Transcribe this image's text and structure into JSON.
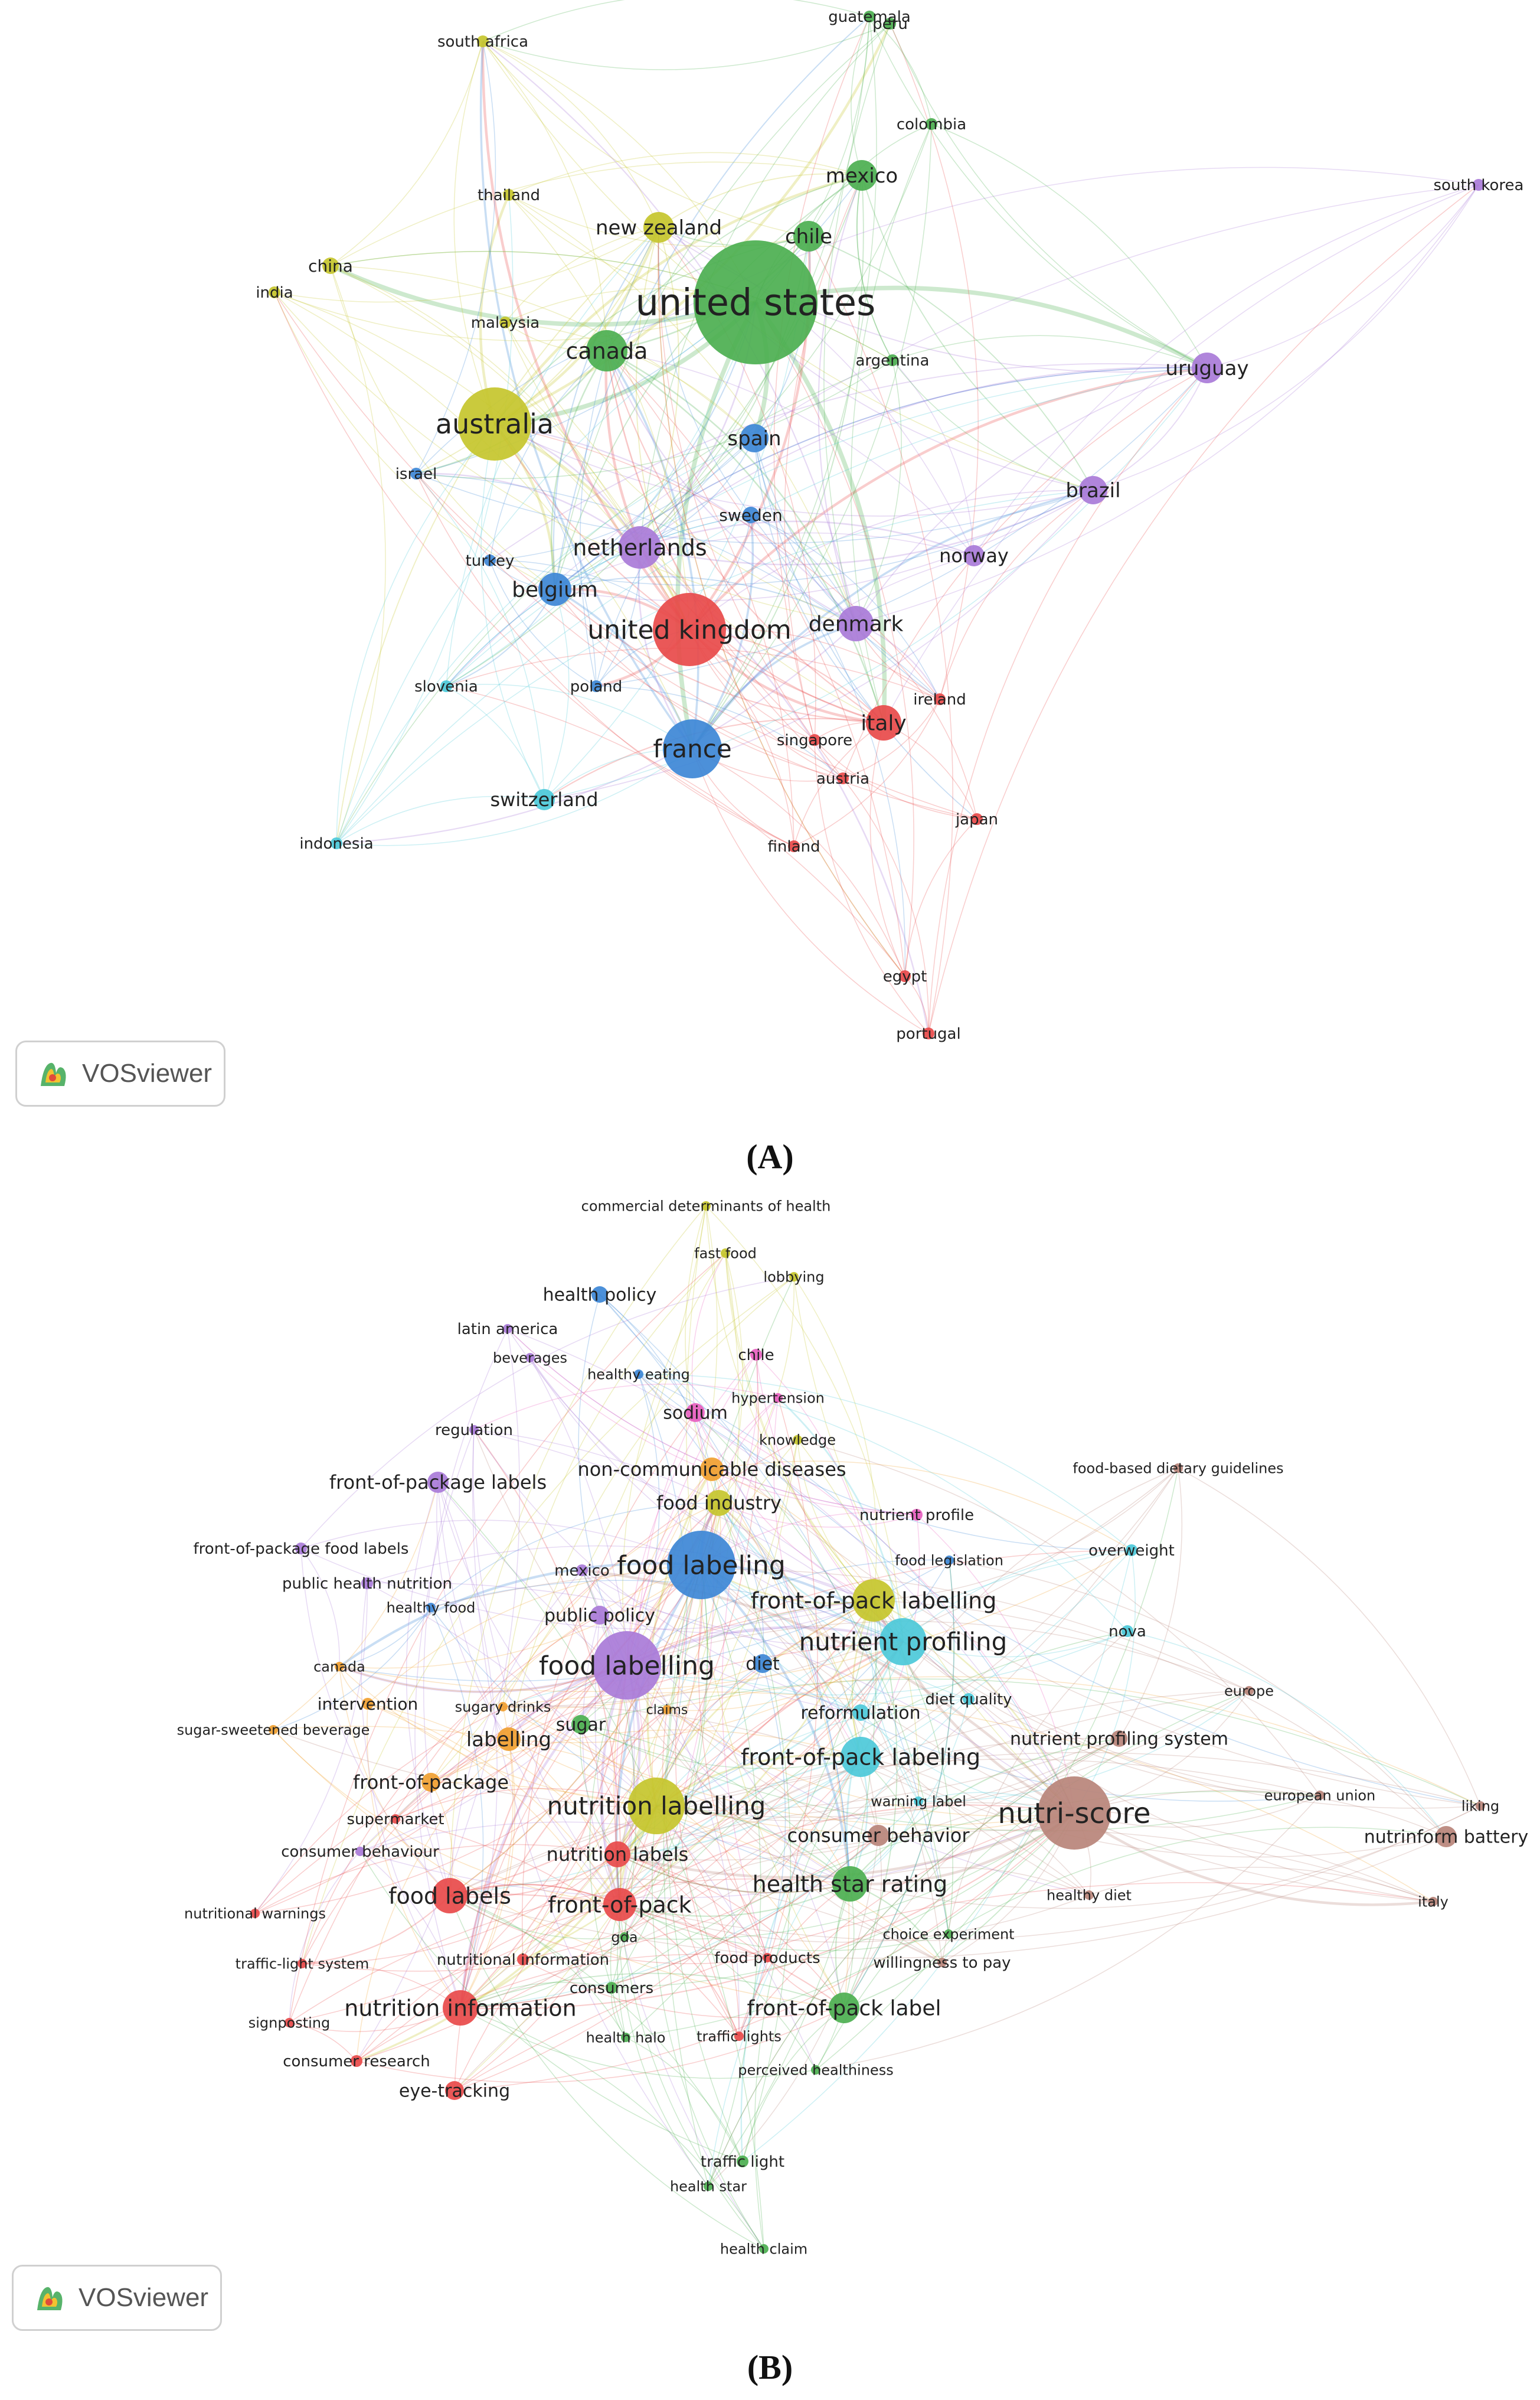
{
  "captions": {
    "a": "(A)",
    "b": "(B)"
  },
  "logo": {
    "text": "VOSviewer",
    "icon": "vosviewer-logo-icon"
  },
  "panel_a": {
    "nodes": [
      {
        "label": "united states",
        "c": "#4caf50",
        "r": 105,
        "fs": 62
      },
      {
        "label": "australia",
        "c": "#c6c62c",
        "r": 62,
        "fs": 46
      },
      {
        "label": "united kingdom",
        "c": "#e84a4a",
        "r": 62,
        "fs": 44
      },
      {
        "label": "france",
        "c": "#3d87d6",
        "r": 50,
        "fs": 42
      },
      {
        "label": "netherlands",
        "c": "#a97bd8",
        "r": 36,
        "fs": 38
      },
      {
        "label": "canada",
        "c": "#4caf50",
        "r": 35,
        "fs": 38
      },
      {
        "label": "new zealand",
        "c": "#c6c62c",
        "r": 26,
        "fs": 34
      },
      {
        "label": "mexico",
        "c": "#4caf50",
        "r": 26,
        "fs": 34
      },
      {
        "label": "chile",
        "c": "#4caf50",
        "r": 26,
        "fs": 34
      },
      {
        "label": "uruguay",
        "c": "#a97bd8",
        "r": 26,
        "fs": 34
      },
      {
        "label": "brazil",
        "c": "#a97bd8",
        "r": 24,
        "fs": 34
      },
      {
        "label": "denmark",
        "c": "#a97bd8",
        "r": 30,
        "fs": 36
      },
      {
        "label": "italy",
        "c": "#e84a4a",
        "r": 30,
        "fs": 36
      },
      {
        "label": "belgium",
        "c": "#3d87d6",
        "r": 28,
        "fs": 36
      },
      {
        "label": "spain",
        "c": "#3d87d6",
        "r": 24,
        "fs": 34
      },
      {
        "label": "switzerland",
        "c": "#4cc9d9",
        "r": 18,
        "fs": 32
      },
      {
        "label": "norway",
        "c": "#a97bd8",
        "r": 18,
        "fs": 32
      },
      {
        "label": "sweden",
        "c": "#3d87d6",
        "r": 14,
        "fs": 28
      },
      {
        "label": "china",
        "c": "#c6c62c",
        "r": 14,
        "fs": 28
      },
      {
        "label": "south africa",
        "c": "#c6c62c",
        "r": 10,
        "fs": 26
      },
      {
        "label": "thailand",
        "c": "#c6c62c",
        "r": 10,
        "fs": 26
      },
      {
        "label": "india",
        "c": "#c6c62c",
        "r": 10,
        "fs": 26
      },
      {
        "label": "malaysia",
        "c": "#c6c62c",
        "r": 10,
        "fs": 26
      },
      {
        "label": "guatemala",
        "c": "#4caf50",
        "r": 10,
        "fs": 26
      },
      {
        "label": "peru",
        "c": "#4caf50",
        "r": 10,
        "fs": 26
      },
      {
        "label": "colombia",
        "c": "#4caf50",
        "r": 10,
        "fs": 26
      },
      {
        "label": "argentina",
        "c": "#4caf50",
        "r": 10,
        "fs": 26
      },
      {
        "label": "south korea",
        "c": "#a97bd8",
        "r": 10,
        "fs": 26
      },
      {
        "label": "israel",
        "c": "#3d87d6",
        "r": 10,
        "fs": 26
      },
      {
        "label": "turkey",
        "c": "#3d87d6",
        "r": 10,
        "fs": 26
      },
      {
        "label": "slovenia",
        "c": "#4cc9d9",
        "r": 10,
        "fs": 26
      },
      {
        "label": "poland",
        "c": "#3d87d6",
        "r": 10,
        "fs": 26
      },
      {
        "label": "ireland",
        "c": "#e84a4a",
        "r": 10,
        "fs": 26
      },
      {
        "label": "singapore",
        "c": "#e84a4a",
        "r": 10,
        "fs": 26
      },
      {
        "label": "austria",
        "c": "#e84a4a",
        "r": 10,
        "fs": 26
      },
      {
        "label": "japan",
        "c": "#e84a4a",
        "r": 10,
        "fs": 26
      },
      {
        "label": "finland",
        "c": "#e84a4a",
        "r": 10,
        "fs": 26
      },
      {
        "label": "indonesia",
        "c": "#4cc9d9",
        "r": 10,
        "fs": 26
      },
      {
        "label": "egypt",
        "c": "#e84a4a",
        "r": 10,
        "fs": 26
      },
      {
        "label": "portugal",
        "c": "#e84a4a",
        "r": 10,
        "fs": 26
      }
    ]
  },
  "panel_b": {
    "nodes": [
      {
        "label": "nutri-score",
        "c": "#b8847a",
        "r": 62,
        "fs": 48
      },
      {
        "label": "food labelling",
        "c": "#a97bd8",
        "r": 58,
        "fs": 44
      },
      {
        "label": "food labeling",
        "c": "#3d87d6",
        "r": 58,
        "fs": 44
      },
      {
        "label": "nutrition labelling",
        "c": "#c6c62c",
        "r": 48,
        "fs": 42
      },
      {
        "label": "nutrient profiling",
        "c": "#4cc9d9",
        "r": 40,
        "fs": 42
      },
      {
        "label": "front-of-pack labelling",
        "c": "#c6c62c",
        "r": 36,
        "fs": 38
      },
      {
        "label": "front-of-pack labeling",
        "c": "#4cc9d9",
        "r": 34,
        "fs": 38
      },
      {
        "label": "health star rating",
        "c": "#4caf50",
        "r": 30,
        "fs": 38
      },
      {
        "label": "food labels",
        "c": "#e84a4a",
        "r": 30,
        "fs": 38
      },
      {
        "label": "front-of-pack",
        "c": "#e84a4a",
        "r": 28,
        "fs": 38
      },
      {
        "label": "nutrition information",
        "c": "#e84a4a",
        "r": 30,
        "fs": 38
      },
      {
        "label": "front-of-pack label",
        "c": "#4caf50",
        "r": 26,
        "fs": 36
      },
      {
        "label": "non-communicable diseases",
        "c": "#f0a030",
        "r": 20,
        "fs": 32
      },
      {
        "label": "front-of-package labels",
        "c": "#a97bd8",
        "r": 18,
        "fs": 32
      },
      {
        "label": "food industry",
        "c": "#c6c62c",
        "r": 22,
        "fs": 32
      },
      {
        "label": "labelling",
        "c": "#f0a030",
        "r": 20,
        "fs": 34
      },
      {
        "label": "nutrition labels",
        "c": "#e84a4a",
        "r": 22,
        "fs": 32
      },
      {
        "label": "consumer behavior",
        "c": "#b8847a",
        "r": 18,
        "fs": 32
      },
      {
        "label": "nutrinform battery",
        "c": "#b8847a",
        "r": 18,
        "fs": 30
      },
      {
        "label": "health policy",
        "c": "#3d87d6",
        "r": 14,
        "fs": 30
      },
      {
        "label": "sodium",
        "c": "#e85fc0",
        "r": 16,
        "fs": 30
      },
      {
        "label": "public policy",
        "c": "#a97bd8",
        "r": 16,
        "fs": 30
      },
      {
        "label": "diet",
        "c": "#3d87d6",
        "r": 16,
        "fs": 30
      },
      {
        "label": "sugar",
        "c": "#4caf50",
        "r": 16,
        "fs": 30
      },
      {
        "label": "front-of-package",
        "c": "#f0a030",
        "r": 16,
        "fs": 32
      },
      {
        "label": "eye-tracking",
        "c": "#e84a4a",
        "r": 16,
        "fs": 30
      },
      {
        "label": "reformulation",
        "c": "#4cc9d9",
        "r": 14,
        "fs": 30
      },
      {
        "label": "nutrient profiling system",
        "c": "#b8847a",
        "r": 14,
        "fs": 30
      },
      {
        "label": "commercial determinants of health",
        "c": "#c6c62c",
        "r": 8,
        "fs": 24
      },
      {
        "label": "fast food",
        "c": "#c6c62c",
        "r": 8,
        "fs": 24
      },
      {
        "label": "lobbying",
        "c": "#c6c62c",
        "r": 8,
        "fs": 24
      },
      {
        "label": "latin america",
        "c": "#a97bd8",
        "r": 8,
        "fs": 26
      },
      {
        "label": "beverages",
        "c": "#a97bd8",
        "r": 8,
        "fs": 24
      },
      {
        "label": "healthy eating",
        "c": "#3d87d6",
        "r": 8,
        "fs": 24
      },
      {
        "label": "chile",
        "c": "#e85fc0",
        "r": 10,
        "fs": 26
      },
      {
        "label": "hypertension",
        "c": "#e85fc0",
        "r": 8,
        "fs": 24
      },
      {
        "label": "regulation",
        "c": "#a97bd8",
        "r": 8,
        "fs": 26
      },
      {
        "label": "knowledge",
        "c": "#c6c62c",
        "r": 8,
        "fs": 24
      },
      {
        "label": "food-based dietary guidelines",
        "c": "#b8847a",
        "r": 8,
        "fs": 24
      },
      {
        "label": "nutrient profile",
        "c": "#e85fc0",
        "r": 10,
        "fs": 26
      },
      {
        "label": "front-of-package food labels",
        "c": "#a97bd8",
        "r": 10,
        "fs": 26
      },
      {
        "label": "overweight",
        "c": "#4cc9d9",
        "r": 10,
        "fs": 26
      },
      {
        "label": "mexico",
        "c": "#a97bd8",
        "r": 10,
        "fs": 26
      },
      {
        "label": "food legislation",
        "c": "#3d87d6",
        "r": 8,
        "fs": 24
      },
      {
        "label": "public health nutrition",
        "c": "#a97bd8",
        "r": 10,
        "fs": 26
      },
      {
        "label": "healthy food",
        "c": "#3d87d6",
        "r": 8,
        "fs": 24
      },
      {
        "label": "nova",
        "c": "#4cc9d9",
        "r": 10,
        "fs": 26
      },
      {
        "label": "canada",
        "c": "#f0a030",
        "r": 8,
        "fs": 24
      },
      {
        "label": "intervention",
        "c": "#f0a030",
        "r": 10,
        "fs": 28
      },
      {
        "label": "sugary drinks",
        "c": "#f0a030",
        "r": 8,
        "fs": 24
      },
      {
        "label": "claims",
        "c": "#f0a030",
        "r": 8,
        "fs": 22
      },
      {
        "label": "diet quality",
        "c": "#4cc9d9",
        "r": 10,
        "fs": 26
      },
      {
        "label": "europe",
        "c": "#b8847a",
        "r": 8,
        "fs": 24
      },
      {
        "label": "sugar-sweetened beverage",
        "c": "#f0a030",
        "r": 8,
        "fs": 24
      },
      {
        "label": "warning label",
        "c": "#4cc9d9",
        "r": 8,
        "fs": 24
      },
      {
        "label": "european union",
        "c": "#b8847a",
        "r": 8,
        "fs": 24
      },
      {
        "label": "liking",
        "c": "#b8847a",
        "r": 8,
        "fs": 24
      },
      {
        "label": "supermarket",
        "c": "#e84a4a",
        "r": 8,
        "fs": 26
      },
      {
        "label": "consumer behaviour",
        "c": "#a97bd8",
        "r": 8,
        "fs": 26
      },
      {
        "label": "healthy diet",
        "c": "#b8847a",
        "r": 8,
        "fs": 24
      },
      {
        "label": "italy",
        "c": "#b8847a",
        "r": 8,
        "fs": 24
      },
      {
        "label": "nutritional warnings",
        "c": "#e84a4a",
        "r": 8,
        "fs": 24
      },
      {
        "label": "gda",
        "c": "#4caf50",
        "r": 8,
        "fs": 24
      },
      {
        "label": "choice experiment",
        "c": "#4caf50",
        "r": 8,
        "fs": 24
      },
      {
        "label": "traffic-light system",
        "c": "#e84a4a",
        "r": 8,
        "fs": 24
      },
      {
        "label": "nutritional information",
        "c": "#e84a4a",
        "r": 10,
        "fs": 26
      },
      {
        "label": "food products",
        "c": "#e84a4a",
        "r": 8,
        "fs": 26
      },
      {
        "label": "willingness to pay",
        "c": "#b8847a",
        "r": 8,
        "fs": 26
      },
      {
        "label": "consumers",
        "c": "#4caf50",
        "r": 10,
        "fs": 26
      },
      {
        "label": "signposting",
        "c": "#e84a4a",
        "r": 8,
        "fs": 24
      },
      {
        "label": "traffic lights",
        "c": "#e84a4a",
        "r": 8,
        "fs": 24
      },
      {
        "label": "consumer research",
        "c": "#e84a4a",
        "r": 10,
        "fs": 26
      },
      {
        "label": "health halo",
        "c": "#4caf50",
        "r": 8,
        "fs": 24
      },
      {
        "label": "perceived healthiness",
        "c": "#4caf50",
        "r": 8,
        "fs": 24
      },
      {
        "label": "traffic light",
        "c": "#4caf50",
        "r": 10,
        "fs": 26
      },
      {
        "label": "health star",
        "c": "#4caf50",
        "r": 8,
        "fs": 24
      },
      {
        "label": "health claim",
        "c": "#4caf50",
        "r": 8,
        "fs": 24
      }
    ]
  }
}
